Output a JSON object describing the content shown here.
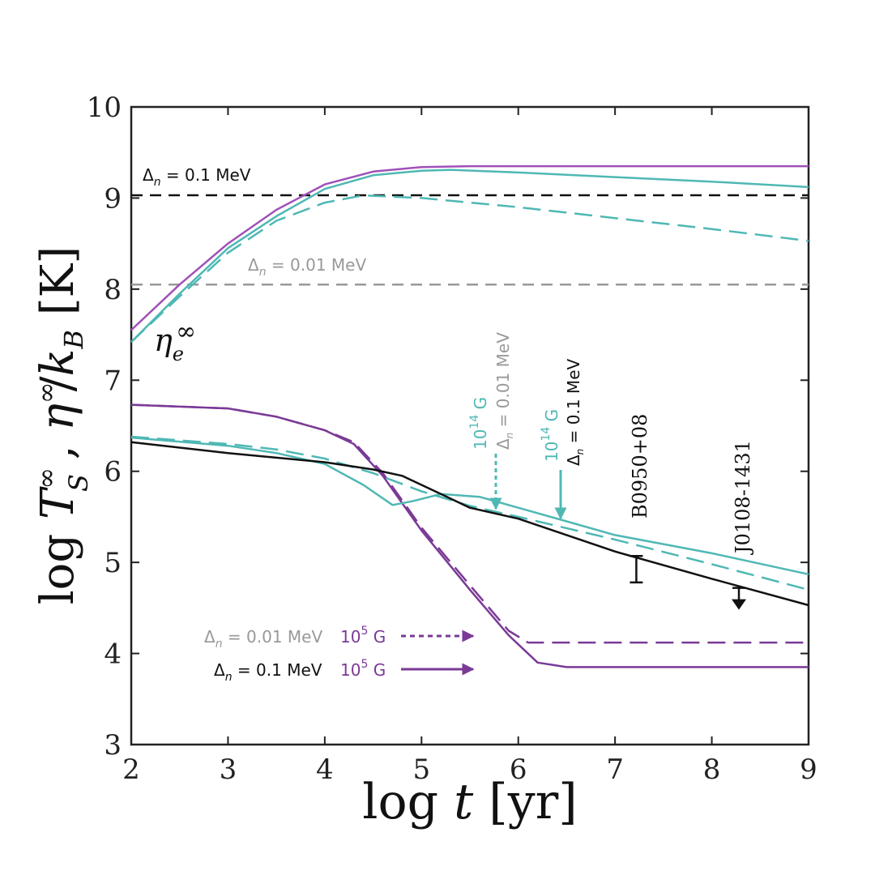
{
  "chart_data": {
    "type": "line",
    "xlabel_prefix": "log ",
    "xlabel_var": "t",
    "xlabel_unit": " [yr]",
    "ylabel_prefix": "log ",
    "ylabel_T": "T",
    "ylabel_inf": "∞",
    "ylabel_S": "S",
    "ylabel_comma": " , ",
    "ylabel_eta": "η",
    "ylabel_slash": "/",
    "ylabel_k": "k",
    "ylabel_B": "B",
    "ylabel_unit": "  [K]",
    "xlim": [
      2,
      9
    ],
    "ylim": [
      3,
      10
    ],
    "xticks": [
      "2",
      "3",
      "4",
      "5",
      "6",
      "7",
      "8",
      "9"
    ],
    "yticks": [
      "3",
      "4",
      "5",
      "6",
      "7",
      "8",
      "9",
      "10"
    ],
    "eta_label": {
      "main": "η",
      "sub": "e",
      "sup": "∞"
    },
    "annotations": {
      "ref01": " = 0.1 MeV",
      "ref001": " = 0.01 MeV",
      "field_high_base": "10",
      "field_high_exp": "14",
      "field_low_base": "10",
      "field_low_exp": "5",
      "field_unit": " G"
    },
    "reference_lines": [
      {
        "name": "Delta_n = 0.1 MeV",
        "y": 9.03,
        "color": "#111111"
      },
      {
        "name": "Delta_n = 0.01 MeV",
        "y": 8.05,
        "color": "#999999"
      }
    ],
    "series": [
      {
        "name": "eta 1e5 G",
        "color": "#a050b8",
        "style": "solid",
        "x": [
          2,
          2.5,
          3,
          3.5,
          4,
          4.5,
          5,
          5.5,
          6,
          7,
          8,
          9
        ],
        "y": [
          7.55,
          8.05,
          8.5,
          8.87,
          9.15,
          9.29,
          9.34,
          9.35,
          9.35,
          9.35,
          9.35,
          9.35
        ]
      },
      {
        "name": "eta 1e14 G, 0.1 MeV",
        "color": "#4fb8b4",
        "style": "solid",
        "x": [
          2,
          2.5,
          3,
          3.5,
          4,
          4.5,
          5,
          5.3,
          6,
          7,
          8,
          9
        ],
        "y": [
          7.42,
          7.95,
          8.45,
          8.8,
          9.1,
          9.25,
          9.3,
          9.31,
          9.28,
          9.23,
          9.18,
          9.12
        ]
      },
      {
        "name": "eta 1e14 G, 0.01 MeV",
        "color": "#4fb8b4",
        "style": "dashed",
        "x": [
          2,
          2.5,
          3,
          3.5,
          4,
          4.4,
          5,
          6,
          7,
          8,
          9
        ],
        "y": [
          7.42,
          7.92,
          8.4,
          8.75,
          8.95,
          9.03,
          9.0,
          8.9,
          8.78,
          8.66,
          8.53
        ]
      },
      {
        "name": "T 1e5 G, 0.1 MeV",
        "color": "#7a3a96",
        "style": "solid",
        "x": [
          2,
          3,
          3.5,
          4,
          4.3,
          4.6,
          5,
          5.5,
          5.9,
          6.2,
          6.5,
          7,
          8,
          9
        ],
        "y": [
          6.73,
          6.69,
          6.6,
          6.45,
          6.3,
          5.95,
          5.35,
          4.7,
          4.2,
          3.9,
          3.85,
          3.85,
          3.85,
          3.85
        ]
      },
      {
        "name": "T 1e5 G, 0.01 MeV",
        "color": "#7a3a96",
        "style": "dashed",
        "x": [
          2,
          3,
          3.5,
          4,
          4.3,
          4.6,
          5,
          5.5,
          5.9,
          6.1,
          6.5,
          7,
          8,
          9
        ],
        "y": [
          6.73,
          6.69,
          6.6,
          6.45,
          6.32,
          5.98,
          5.38,
          4.75,
          4.25,
          4.12,
          4.12,
          4.12,
          4.12,
          4.12
        ]
      },
      {
        "name": "T 1e14 G, 0.1 MeV",
        "color": "#4fb8b4",
        "style": "solid",
        "x": [
          2,
          3,
          3.5,
          4,
          4.4,
          4.7,
          4.9,
          5.2,
          5.6,
          6,
          6.5,
          7,
          8,
          9
        ],
        "y": [
          6.37,
          6.28,
          6.2,
          6.08,
          5.85,
          5.63,
          5.67,
          5.75,
          5.72,
          5.6,
          5.45,
          5.3,
          5.1,
          4.87
        ]
      },
      {
        "name": "T 1e14 G, 0.01 MeV",
        "color": "#4fb8b4",
        "style": "dashed",
        "x": [
          2,
          3,
          3.5,
          4,
          4.5,
          5,
          5.5,
          6,
          7,
          8,
          9
        ],
        "y": [
          6.38,
          6.3,
          6.24,
          6.14,
          5.98,
          5.78,
          5.62,
          5.5,
          5.25,
          4.98,
          4.7
        ]
      },
      {
        "name": "T no field",
        "color": "#111111",
        "style": "solid",
        "x": [
          2,
          3,
          4,
          4.5,
          4.8,
          5.2,
          5.5,
          6,
          6.5,
          7,
          8,
          9
        ],
        "y": [
          6.32,
          6.2,
          6.1,
          6.02,
          5.95,
          5.75,
          5.6,
          5.48,
          5.3,
          5.12,
          4.82,
          4.53
        ]
      }
    ],
    "observations": [
      {
        "name": "B0950+08",
        "x": 7.22,
        "y_low": 4.78,
        "y_high": 5.07,
        "kind": "errorbar"
      },
      {
        "name": "J0108-1431",
        "x": 8.28,
        "y": 4.72,
        "kind": "upper-limit"
      }
    ]
  }
}
